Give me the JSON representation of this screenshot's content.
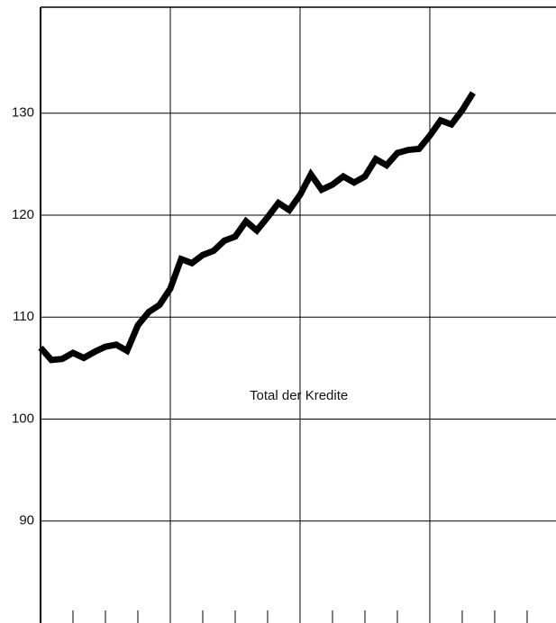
{
  "chart_data": {
    "type": "line",
    "annotation": "Total der Kredite",
    "x": [
      0,
      1,
      2,
      3,
      4,
      5,
      6,
      7,
      8,
      9,
      10,
      11,
      12,
      13,
      14,
      15,
      16,
      17,
      18,
      19,
      20,
      21,
      22,
      23,
      24,
      25,
      26,
      27,
      28,
      29,
      30,
      31,
      32,
      33,
      34,
      35,
      36,
      37,
      38,
      39,
      40
    ],
    "series": [
      {
        "name": "Total der Kredite",
        "color": "#000000",
        "values": [
          107,
          105.8,
          105.9,
          106.5,
          106,
          106.6,
          107.1,
          107.3,
          106.7,
          109.2,
          110.5,
          111.2,
          112.8,
          115.7,
          115.3,
          116.1,
          116.5,
          117.5,
          117.9,
          119.4,
          118.5,
          119.8,
          121.2,
          120.5,
          122,
          124,
          122.5,
          123,
          123.8,
          123.2,
          123.8,
          125.5,
          124.9,
          126.1,
          126.4,
          126.5,
          127.8,
          129.3,
          128.9,
          130.3,
          132
        ]
      }
    ],
    "xlim": [
      0,
      47.67
    ],
    "xticks": [
      12,
      24,
      36
    ],
    "x_minor_ticks": [
      3,
      6,
      9,
      15,
      18,
      21,
      27,
      30,
      33,
      39,
      42,
      45
    ],
    "ylim": [
      80,
      140.4
    ],
    "yticks": [
      90,
      100,
      110,
      120,
      130
    ],
    "grid": true
  }
}
